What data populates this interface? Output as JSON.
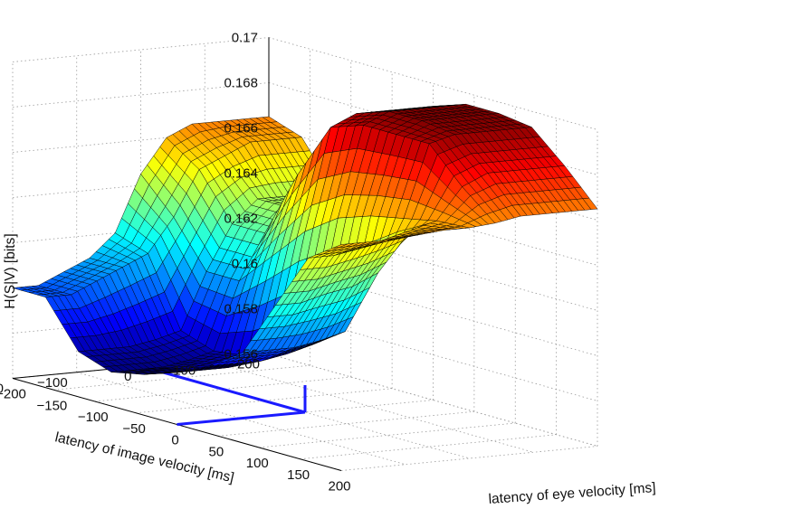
{
  "chart_data": {
    "type": "surface",
    "title": "",
    "xlabel": "latency of  eye velocity [ms]",
    "ylabel": "latency of image velocity [ms]",
    "zlabel": "H(S|V) [bits]",
    "xlim": [
      -200,
      200
    ],
    "ylim": [
      -200,
      200
    ],
    "zlim": [
      0.156,
      0.17
    ],
    "x_ticks": [
      -200,
      -150,
      -100,
      -50,
      0,
      50,
      100,
      150,
      200
    ],
    "x_tick_labels": [
      "−200",
      "−150",
      "−100",
      "−50",
      "0",
      "50",
      "100",
      "150",
      "200"
    ],
    "y_ticks": [
      -200,
      -100,
      0,
      100,
      200
    ],
    "y_tick_labels": [
      "−200",
      "−100",
      "0",
      "100",
      "200"
    ],
    "z_ticks": [
      0.156,
      0.158,
      0.16,
      0.162,
      0.164,
      0.166,
      0.168,
      0.17
    ],
    "z_tick_labels": [
      "0.156",
      "0.158",
      "0.16",
      "0.162",
      "0.164",
      "0.166",
      "0.168",
      "0.17"
    ],
    "grid": true,
    "colormap": "jet",
    "surface_x": [
      -200,
      -160,
      -120,
      -80,
      -40,
      0,
      40,
      80,
      120,
      160,
      200
    ],
    "surface_y": [
      -200,
      -160,
      -120,
      -80,
      -40,
      0,
      40,
      80,
      120,
      160,
      200
    ],
    "surface_z": [
      [
        0.16,
        0.16,
        0.158,
        0.1575,
        0.1578,
        0.1583,
        0.159,
        0.16,
        0.1625,
        0.165,
        0.166
      ],
      [
        0.16,
        0.16,
        0.158,
        0.1575,
        0.1578,
        0.1583,
        0.159,
        0.16,
        0.1625,
        0.165,
        0.166
      ],
      [
        0.1605,
        0.1605,
        0.158,
        0.1575,
        0.1578,
        0.1583,
        0.159,
        0.16,
        0.1628,
        0.1652,
        0.166
      ],
      [
        0.161,
        0.161,
        0.1582,
        0.1577,
        0.158,
        0.1585,
        0.1592,
        0.1602,
        0.163,
        0.1655,
        0.1661
      ],
      [
        0.162,
        0.1615,
        0.1585,
        0.158,
        0.1582,
        0.1588,
        0.1595,
        0.1605,
        0.1635,
        0.1658,
        0.1662
      ],
      [
        0.1645,
        0.163,
        0.161,
        0.161,
        0.1625,
        0.164,
        0.165,
        0.1655,
        0.1658,
        0.1661,
        0.1662
      ],
      [
        0.166,
        0.165,
        0.163,
        0.163,
        0.166,
        0.1685,
        0.169,
        0.169,
        0.169,
        0.1675,
        0.1663
      ],
      [
        0.1665,
        0.1655,
        0.164,
        0.164,
        0.167,
        0.169,
        0.1695,
        0.1695,
        0.1693,
        0.168,
        0.1665
      ],
      [
        0.1665,
        0.166,
        0.164,
        0.164,
        0.167,
        0.169,
        0.1695,
        0.1695,
        0.1693,
        0.168,
        0.1665
      ],
      [
        0.1665,
        0.166,
        0.164,
        0.164,
        0.167,
        0.169,
        0.1695,
        0.1695,
        0.1693,
        0.168,
        0.1665
      ],
      [
        0.1665,
        0.166,
        0.164,
        0.164,
        0.167,
        0.169,
        0.1695,
        0.1695,
        0.1693,
        0.168,
        0.1665
      ]
    ],
    "origin_marker": {
      "x": 0,
      "y": 0,
      "color": "#1a1aff"
    }
  }
}
